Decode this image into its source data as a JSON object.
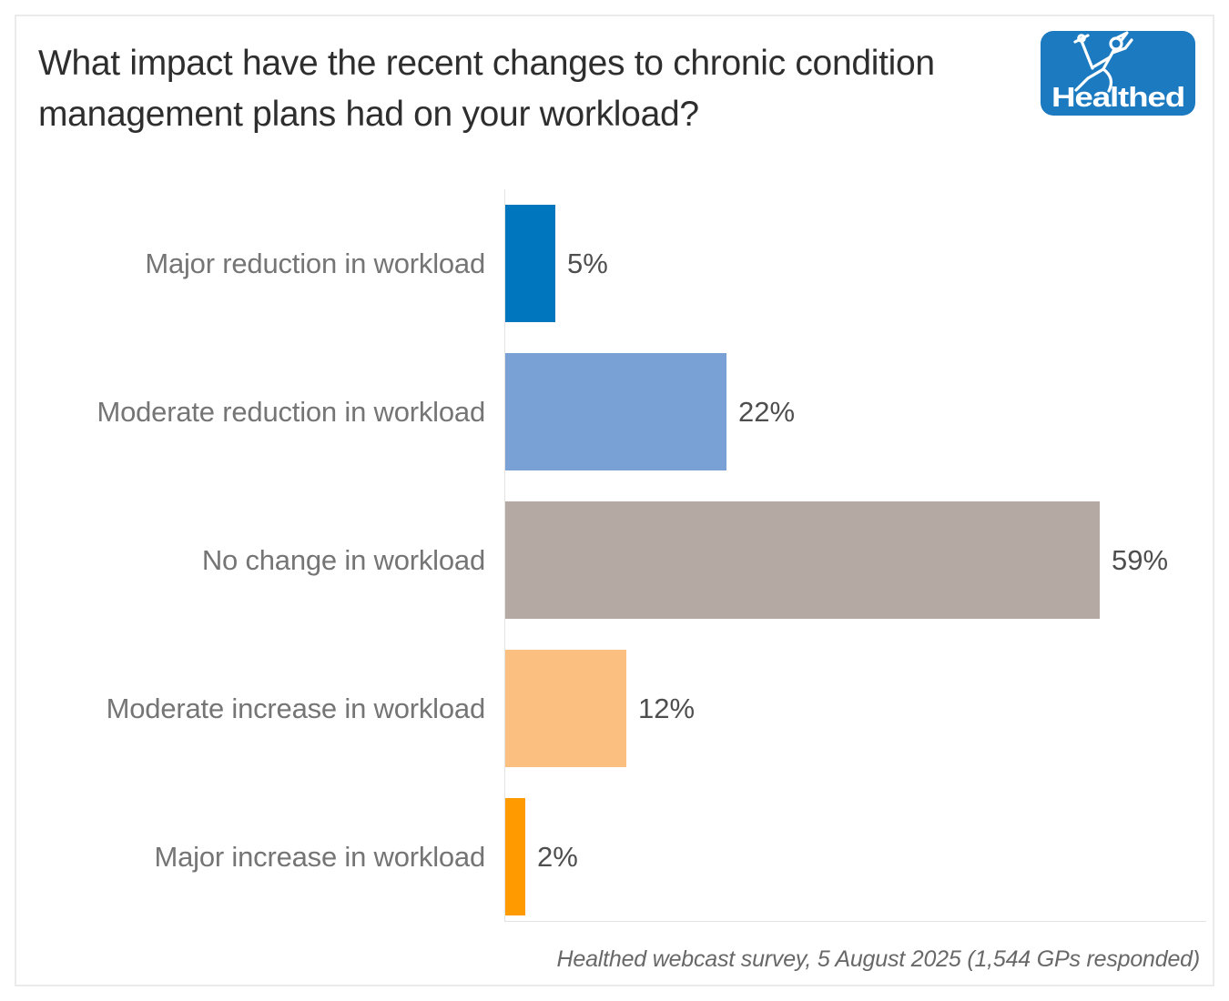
{
  "header": {
    "title_line1": "What impact have the recent changes to chronic condition",
    "title_line2": "management plans had on your workload?",
    "logo_text": "Healthed"
  },
  "chart_data": {
    "type": "bar",
    "orientation": "horizontal",
    "title": "What impact have the recent changes to chronic condition management plans had on your workload?",
    "categories": [
      "Major reduction in workload",
      "Moderate reduction in workload",
      "No change in workload",
      "Moderate increase in workload",
      "Major increase in workload"
    ],
    "values": [
      5,
      22,
      59,
      12,
      2
    ],
    "value_labels": [
      "5%",
      "22%",
      "59%",
      "12%",
      "2%"
    ],
    "bar_colors": [
      "#0076BE",
      "#7AA1D6",
      "#B4AAA3",
      "#FBC080",
      "#FF9B00"
    ],
    "xlabel": "",
    "ylabel": "",
    "xlim": [
      0,
      70
    ],
    "grid": false,
    "legend": false,
    "source": "Healthed webcast survey, 5 August 2025 (1,544 GPs responded)"
  },
  "footer": {
    "source": "Healthed webcast survey, 5 August 2025 (1,544 GPs responded)"
  },
  "colors": {
    "logo_blue": "#1B7AC0",
    "title_text": "#2e2e2e",
    "category_label": "#757575",
    "value_label": "#4e4e4e",
    "axis_line": "#e3e3e3"
  }
}
